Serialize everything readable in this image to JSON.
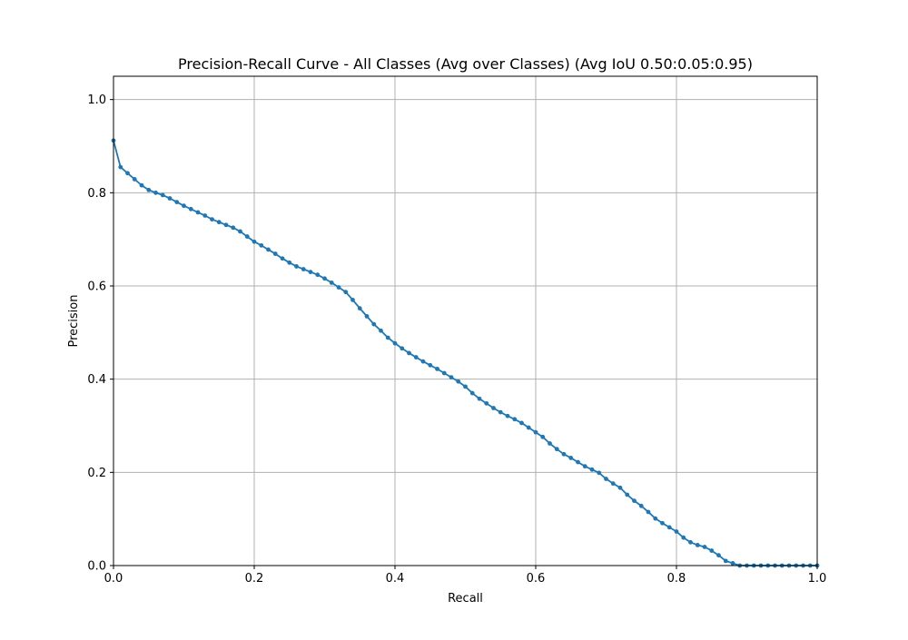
{
  "chart_data": {
    "type": "line",
    "title": "Precision-Recall Curve - All Classes (Avg over Classes) (Avg IoU 0.50:0.05:0.95)",
    "xlabel": "Recall",
    "ylabel": "Precision",
    "xlim": [
      0,
      1
    ],
    "ylim": [
      0,
      1.05
    ],
    "x_ticks": [
      "0.0",
      "0.2",
      "0.4",
      "0.6",
      "0.8",
      "1.0"
    ],
    "y_ticks": [
      "0.0",
      "0.2",
      "0.4",
      "0.6",
      "0.8",
      "1.0"
    ],
    "grid": true,
    "legend": "none",
    "series": [
      {
        "color": "#1f77b4",
        "marker": "circle",
        "x": [
          0.0,
          0.01,
          0.02,
          0.03,
          0.04,
          0.05,
          0.06,
          0.07,
          0.08,
          0.09,
          0.1,
          0.11,
          0.12,
          0.13,
          0.14,
          0.15,
          0.16,
          0.17,
          0.18,
          0.19,
          0.2,
          0.21,
          0.22,
          0.23,
          0.24,
          0.25,
          0.26,
          0.27,
          0.28,
          0.29,
          0.3,
          0.31,
          0.32,
          0.33,
          0.34,
          0.35,
          0.36,
          0.37,
          0.38,
          0.39,
          0.4,
          0.41,
          0.42,
          0.43,
          0.44,
          0.45,
          0.46,
          0.47,
          0.48,
          0.49,
          0.5,
          0.51,
          0.52,
          0.53,
          0.54,
          0.55,
          0.56,
          0.57,
          0.58,
          0.59,
          0.6,
          0.61,
          0.62,
          0.63,
          0.64,
          0.65,
          0.66,
          0.67,
          0.68,
          0.69,
          0.7,
          0.71,
          0.72,
          0.73,
          0.74,
          0.75,
          0.76,
          0.77,
          0.78,
          0.79,
          0.8,
          0.81,
          0.82,
          0.83,
          0.84,
          0.85,
          0.86,
          0.87,
          0.88,
          0.89,
          0.9,
          0.91,
          0.92,
          0.93,
          0.94,
          0.95,
          0.96,
          0.97,
          0.98,
          0.99,
          1.0
        ],
        "y": [
          0.912,
          0.855,
          0.842,
          0.829,
          0.816,
          0.806,
          0.8,
          0.795,
          0.788,
          0.78,
          0.772,
          0.765,
          0.758,
          0.751,
          0.743,
          0.737,
          0.731,
          0.725,
          0.717,
          0.706,
          0.695,
          0.687,
          0.678,
          0.669,
          0.659,
          0.65,
          0.642,
          0.636,
          0.63,
          0.624,
          0.616,
          0.607,
          0.597,
          0.587,
          0.57,
          0.552,
          0.535,
          0.518,
          0.504,
          0.489,
          0.477,
          0.466,
          0.456,
          0.447,
          0.438,
          0.43,
          0.422,
          0.413,
          0.404,
          0.395,
          0.384,
          0.37,
          0.358,
          0.348,
          0.338,
          0.329,
          0.321,
          0.314,
          0.306,
          0.296,
          0.286,
          0.276,
          0.262,
          0.25,
          0.239,
          0.231,
          0.222,
          0.213,
          0.206,
          0.199,
          0.186,
          0.176,
          0.167,
          0.152,
          0.139,
          0.128,
          0.115,
          0.101,
          0.091,
          0.082,
          0.073,
          0.06,
          0.05,
          0.044,
          0.04,
          0.032,
          0.022,
          0.01,
          0.005,
          0.0,
          0.0,
          0.0,
          0.0,
          0.0,
          0.0,
          0.0,
          0.0,
          0.0,
          0.0,
          0.0,
          0.0
        ]
      }
    ]
  }
}
